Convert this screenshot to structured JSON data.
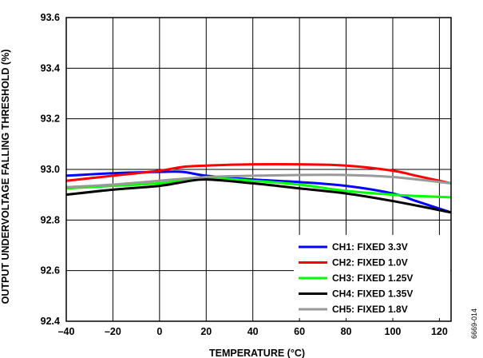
{
  "chart_data": {
    "type": "line",
    "xlabel": "TEMPERATURE (°C)",
    "ylabel": "OUTPUT UNDERVOLTAGE FALLING THRESHOLD (%)",
    "xlim": [
      -40,
      125
    ],
    "ylim": [
      92.4,
      93.6
    ],
    "x_ticks": [
      -40,
      -20,
      0,
      20,
      40,
      60,
      80,
      100,
      120
    ],
    "x_tick_labels": [
      "–40",
      "–20",
      "0",
      "20",
      "40",
      "60",
      "80",
      "100",
      "120"
    ],
    "y_ticks": [
      92.4,
      92.6,
      92.8,
      93.0,
      93.2,
      93.4,
      93.6
    ],
    "y_tick_labels": [
      "92.4",
      "92.6",
      "92.8",
      "93.0",
      "93.2",
      "93.4",
      "93.6"
    ],
    "grid": true,
    "legend_position": "bottom-right",
    "series": [
      {
        "name": "CH1: FIXED 3.3V",
        "color": "#0000ff",
        "x": [
          -40,
          -20,
          0,
          10,
          20,
          40,
          60,
          80,
          100,
          110,
          125
        ],
        "y": [
          92.975,
          92.985,
          92.99,
          92.99,
          92.975,
          92.96,
          92.95,
          92.935,
          92.905,
          92.875,
          92.83
        ]
      },
      {
        "name": "CH2: FIXED 1.0V",
        "color": "#ff0000",
        "x": [
          -40,
          -20,
          0,
          10,
          20,
          40,
          60,
          80,
          100,
          110,
          125
        ],
        "y": [
          92.955,
          92.975,
          92.995,
          93.01,
          93.015,
          93.02,
          93.02,
          93.015,
          92.995,
          92.975,
          92.945
        ]
      },
      {
        "name": "CH3: FIXED 1.25V",
        "color": "#00ff00",
        "x": [
          -40,
          -20,
          0,
          20,
          40,
          60,
          80,
          100,
          110,
          125
        ],
        "y": [
          92.925,
          92.935,
          92.945,
          92.965,
          92.955,
          92.94,
          92.915,
          92.9,
          92.895,
          92.89
        ]
      },
      {
        "name": "CH4: FIXED 1.35V",
        "color": "#000000",
        "x": [
          -40,
          -20,
          0,
          10,
          20,
          40,
          60,
          80,
          100,
          125
        ],
        "y": [
          92.9,
          92.92,
          92.935,
          92.95,
          92.96,
          92.945,
          92.925,
          92.905,
          92.875,
          92.83
        ]
      },
      {
        "name": "CH5: FIXED 1.8V",
        "color": "#999999",
        "x": [
          -40,
          -20,
          0,
          20,
          40,
          60,
          80,
          100,
          125
        ],
        "y": [
          92.93,
          92.94,
          92.955,
          92.97,
          92.975,
          92.978,
          92.978,
          92.97,
          92.945
        ]
      }
    ]
  },
  "figure_id": "6669-014"
}
